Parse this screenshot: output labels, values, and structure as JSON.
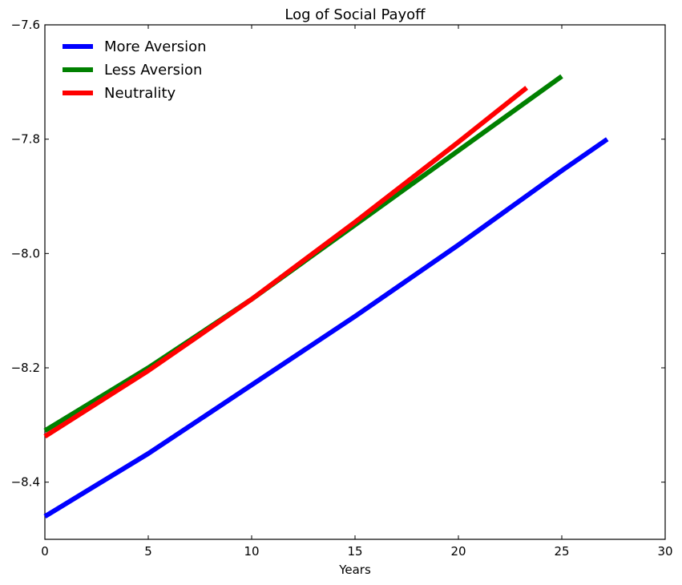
{
  "chart_data": {
    "type": "line",
    "title": "Log of Social Payoff",
    "xlabel": "Years",
    "ylabel": "",
    "xlim": [
      0,
      30
    ],
    "ylim": [
      -8.5,
      -7.6
    ],
    "x_ticks": [
      0,
      5,
      10,
      15,
      20,
      25,
      30
    ],
    "x_tick_labels": [
      "0",
      "5",
      "10",
      "15",
      "20",
      "25",
      "30"
    ],
    "y_ticks": [
      -8.4,
      -8.2,
      -8.0,
      -7.8,
      -7.6
    ],
    "y_tick_labels": [
      "−8.4",
      "−8.2",
      "−8.0",
      "−7.8",
      "−7.6"
    ],
    "grid": false,
    "legend_position": "top-left",
    "series": [
      {
        "name": "More Aversion",
        "color": "#0000ff",
        "x": [
          0,
          5,
          10,
          15,
          20,
          25,
          27.2
        ],
        "y": [
          -8.46,
          -8.35,
          -8.23,
          -8.11,
          -7.985,
          -7.855,
          -7.8
        ]
      },
      {
        "name": "Less Aversion",
        "color": "#008000",
        "x": [
          0,
          5,
          10,
          15,
          20,
          25
        ],
        "y": [
          -8.31,
          -8.2,
          -8.08,
          -7.95,
          -7.82,
          -7.69
        ]
      },
      {
        "name": "Neutrality",
        "color": "#ff0000",
        "x": [
          0,
          5,
          10,
          15,
          20,
          23.3
        ],
        "y": [
          -8.32,
          -8.205,
          -8.08,
          -7.945,
          -7.805,
          -7.71
        ]
      }
    ]
  }
}
